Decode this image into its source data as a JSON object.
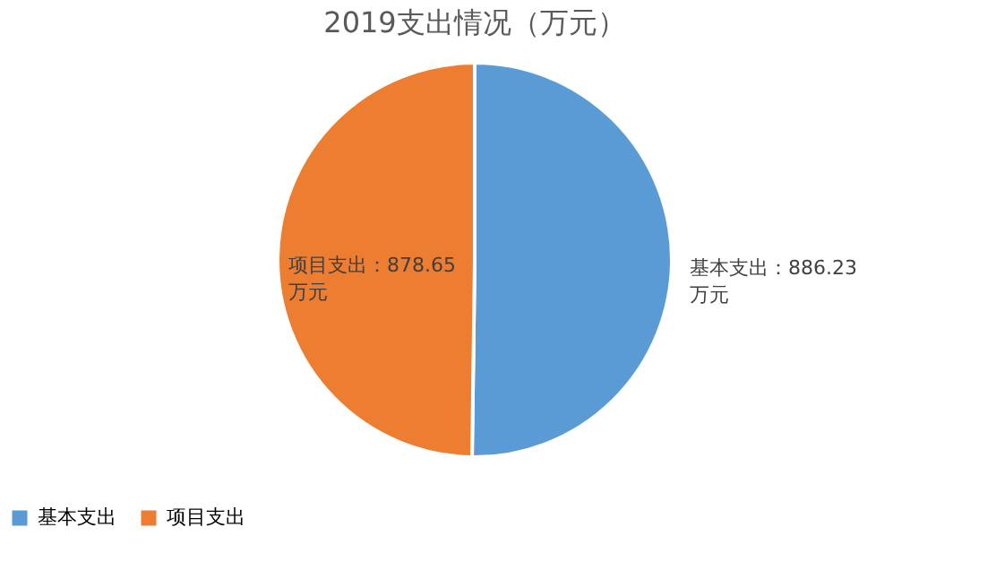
{
  "chart_data": {
    "type": "pie",
    "title": "2019支出情况（万元）",
    "categories": [
      "基本支出",
      "项目支出"
    ],
    "values": [
      886.23,
      878.65
    ],
    "colors": [
      "#5b9bd5",
      "#ed7d31"
    ],
    "value_labels": [
      "基本支出：886.23\n万元",
      "项目支出：878.65\n万元"
    ],
    "legend": "bottom"
  }
}
